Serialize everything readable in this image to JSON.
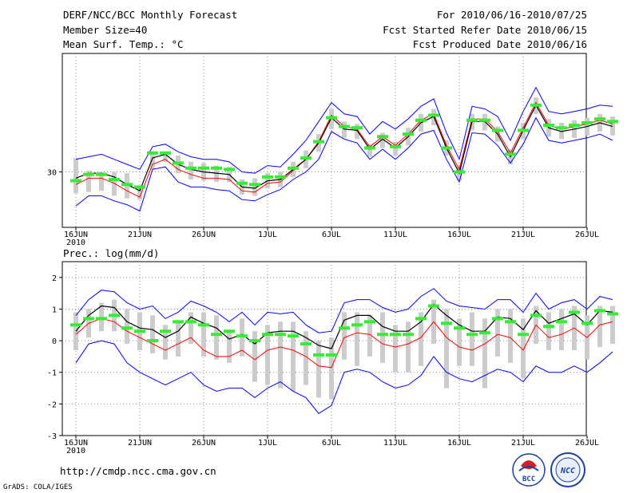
{
  "header": {
    "title": "DERF/NCC/BCC Monthly Forecast",
    "member_size": "Member Size=40",
    "variable": "Mean Surf. Temp.: °C",
    "period": "For 2010/06/16-2010/07/25",
    "started": "Fcst Started Refer Date 2010/06/15",
    "produced": "Fcst Produced Date 2010/06/16"
  },
  "footer": {
    "url": "http://cmdp.ncc.cma.gov.cn",
    "grads": "GrADS: COLA/IGES",
    "logo_bcc": "BCC",
    "logo_ncc": "NCC"
  },
  "colors": {
    "ens_mean": "#000000",
    "obs_mean": "#ff0000",
    "envelope": "#0000ff",
    "member_bar": "#cccccc",
    "highlight": "#33ee33",
    "grid": "#888888"
  },
  "chart_data": [
    {
      "type": "line",
      "title": "Mean Surf. Temp.: °C",
      "x_ticks": [
        "16JUN",
        "21JUN",
        "26JUN",
        "1JUL",
        "6JUL",
        "11JUL",
        "16JUL",
        "21JUL",
        "26JUL"
      ],
      "x_year": "2010",
      "y_ticks": [
        "30"
      ],
      "ylim": [
        25.6,
        39.4
      ],
      "series": [
        {
          "name": "ensemble_mean",
          "values": [
            29.5,
            29.9,
            29.9,
            29.6,
            29.0,
            28.5,
            31.1,
            31.4,
            30.6,
            30.2,
            30.0,
            29.9,
            29.8,
            28.8,
            28.7,
            29.3,
            29.4,
            30.2,
            31.0,
            32.3,
            34.3,
            33.4,
            33.3,
            31.8,
            32.6,
            31.9,
            32.8,
            33.9,
            34.4,
            31.9,
            29.9,
            34.0,
            34.0,
            33.0,
            31.2,
            33.3,
            35.3,
            33.5,
            33.2,
            33.4,
            33.6,
            33.9,
            33.6
          ]
        },
        {
          "name": "red_line",
          "values": [
            29.0,
            29.5,
            29.5,
            29.1,
            28.5,
            28.0,
            30.6,
            31.0,
            30.2,
            29.8,
            29.5,
            29.5,
            29.4,
            28.5,
            28.4,
            29.1,
            29.2,
            30.1,
            31.0,
            32.4,
            34.5,
            33.6,
            33.4,
            32.0,
            32.8,
            32.1,
            33.0,
            34.1,
            34.6,
            32.1,
            30.2,
            34.2,
            34.2,
            33.2,
            31.5,
            33.5,
            35.5,
            33.7,
            33.4,
            33.6,
            33.8,
            34.1,
            33.8
          ]
        },
        {
          "name": "upper_bound",
          "values": [
            31.0,
            31.2,
            31.4,
            31.0,
            30.6,
            30.2,
            32.0,
            32.2,
            31.6,
            31.2,
            31.0,
            31.0,
            30.8,
            30.0,
            29.9,
            30.5,
            30.4,
            31.4,
            32.5,
            34.0,
            35.5,
            34.6,
            34.4,
            33.0,
            34.0,
            33.4,
            34.2,
            35.2,
            35.8,
            33.1,
            31.0,
            35.2,
            35.0,
            34.4,
            32.5,
            34.8,
            36.7,
            34.8,
            34.6,
            34.8,
            35.0,
            35.3,
            35.2
          ]
        },
        {
          "name": "lower_bound",
          "values": [
            27.3,
            28.1,
            28.1,
            27.7,
            27.4,
            26.9,
            30.2,
            30.4,
            29.2,
            28.8,
            28.8,
            28.6,
            28.5,
            27.8,
            27.7,
            28.2,
            28.6,
            29.4,
            30.0,
            31.0,
            33.2,
            32.6,
            32.3,
            31.0,
            31.8,
            31.0,
            31.9,
            33.0,
            33.3,
            31.0,
            29.2,
            33.1,
            33.0,
            32.1,
            30.7,
            32.2,
            34.3,
            32.5,
            32.3,
            32.5,
            32.7,
            33.0,
            32.5
          ]
        },
        {
          "name": "member_bar_high",
          "values": [
            31.1,
            30.1,
            30.0,
            30.0,
            29.9,
            28.9,
            31.6,
            31.6,
            31.3,
            30.8,
            30.7,
            30.5,
            30.4,
            29.4,
            29.5,
            29.9,
            30.0,
            30.8,
            31.7,
            33.0,
            35.0,
            34.0,
            33.8,
            32.2,
            33.1,
            32.4,
            33.5,
            34.6,
            35.0,
            32.5,
            30.5,
            34.6,
            34.6,
            33.6,
            31.8,
            33.9,
            35.9,
            34.2,
            33.9,
            34.1,
            34.3,
            34.6,
            34.4
          ]
        },
        {
          "name": "member_bar_low",
          "values": [
            28.3,
            28.4,
            28.5,
            28.1,
            27.9,
            27.8,
            30.2,
            30.8,
            29.9,
            29.4,
            29.3,
            29.2,
            29.2,
            28.2,
            28.1,
            28.7,
            28.8,
            29.6,
            30.3,
            31.6,
            33.4,
            32.7,
            32.6,
            31.2,
            31.9,
            31.3,
            32.1,
            33.2,
            33.7,
            31.3,
            29.3,
            33.3,
            33.3,
            32.4,
            30.6,
            32.6,
            34.6,
            32.8,
            32.6,
            32.7,
            32.9,
            33.2,
            32.9
          ]
        },
        {
          "name": "highlight_marker",
          "values": [
            29.3,
            29.8,
            29.8,
            29.4,
            29.0,
            28.8,
            31.5,
            31.5,
            30.7,
            30.3,
            30.3,
            30.3,
            30.2,
            29.1,
            29.0,
            29.6,
            29.6,
            30.3,
            31.1,
            32.4,
            34.3,
            33.6,
            33.5,
            31.9,
            32.8,
            32.0,
            33.0,
            34.1,
            34.5,
            31.9,
            30.0,
            34.1,
            34.1,
            33.3,
            31.4,
            33.3,
            35.3,
            33.7,
            33.5,
            33.7,
            33.9,
            34.2,
            34.0
          ]
        }
      ]
    },
    {
      "type": "line",
      "title": "Prec.: log(mm/d)",
      "x_ticks": [
        "16JUN",
        "21JUN",
        "26JUN",
        "1JUL",
        "6JUL",
        "11JUL",
        "16JUL",
        "21JUL",
        "26JUL"
      ],
      "x_year": "2010",
      "y_ticks": [
        "2",
        "1",
        "0",
        "-1",
        "-2",
        "-3"
      ],
      "ylim": [
        -3,
        2.5
      ],
      "series": [
        {
          "name": "ensemble_mean",
          "values": [
            0.3,
            0.8,
            1.1,
            1.05,
            0.6,
            0.4,
            0.35,
            0.1,
            0.3,
            0.75,
            0.55,
            0.4,
            0.05,
            0.2,
            -0.1,
            0.25,
            0.3,
            0.3,
            0.1,
            -0.15,
            -0.25,
            0.65,
            0.8,
            0.8,
            0.45,
            0.3,
            0.3,
            0.6,
            1.15,
            0.8,
            0.5,
            0.3,
            0.3,
            0.75,
            0.7,
            0.35,
            0.95,
            0.55,
            0.7,
            0.85,
            0.5,
            0.95,
            0.9
          ]
        },
        {
          "name": "red_line",
          "values": [
            0.2,
            0.55,
            0.7,
            0.6,
            0.3,
            0.1,
            -0.1,
            -0.3,
            -0.1,
            0.1,
            -0.3,
            -0.5,
            -0.5,
            -0.3,
            -0.6,
            -0.3,
            -0.2,
            -0.3,
            -0.5,
            -0.8,
            -0.85,
            0.1,
            0.25,
            0.2,
            -0.1,
            -0.2,
            -0.1,
            0.1,
            0.6,
            0.1,
            -0.2,
            -0.3,
            -0.1,
            0.2,
            0.1,
            -0.3,
            0.5,
            0.1,
            0.2,
            0.4,
            0.1,
            0.5,
            0.6
          ]
        },
        {
          "name": "upper_bound",
          "values": [
            0.8,
            1.3,
            1.6,
            1.55,
            1.2,
            1.0,
            1.1,
            0.7,
            0.9,
            1.25,
            1.1,
            0.9,
            0.6,
            0.9,
            0.5,
            0.9,
            0.85,
            0.9,
            0.5,
            0.25,
            0.3,
            1.2,
            1.3,
            1.3,
            1.05,
            0.9,
            1.0,
            1.4,
            1.65,
            1.25,
            1.1,
            1.05,
            1.0,
            1.3,
            1.3,
            0.9,
            1.5,
            1.0,
            1.2,
            1.3,
            1.0,
            1.4,
            1.3
          ]
        },
        {
          "name": "lower_bound",
          "values": [
            -0.7,
            -0.1,
            0.0,
            -0.1,
            -0.7,
            -1.0,
            -1.2,
            -1.4,
            -1.2,
            -1.0,
            -1.4,
            -1.6,
            -1.5,
            -1.5,
            -1.8,
            -1.5,
            -1.3,
            -1.6,
            -1.8,
            -2.3,
            -2.05,
            -1.0,
            -0.9,
            -1.0,
            -1.3,
            -1.5,
            -1.4,
            -1.1,
            -0.5,
            -1.0,
            -1.2,
            -1.3,
            -1.1,
            -0.9,
            -1.0,
            -1.3,
            -0.8,
            -1.0,
            -1.0,
            -0.8,
            -1.0,
            -0.7,
            -0.35
          ]
        },
        {
          "name": "member_bar_high",
          "values": [
            0.9,
            1.0,
            1.2,
            1.3,
            1.0,
            0.9,
            0.8,
            0.5,
            0.6,
            0.9,
            0.9,
            0.8,
            0.3,
            0.7,
            0.3,
            0.5,
            0.6,
            0.6,
            0.3,
            0.0,
            0.1,
            0.9,
            0.9,
            0.8,
            0.9,
            0.5,
            0.6,
            0.9,
            1.3,
            1.0,
            0.7,
            0.9,
            0.7,
            1.0,
            1.0,
            0.7,
            1.1,
            0.9,
            1.0,
            1.1,
            0.8,
            1.1,
            1.1
          ]
        },
        {
          "name": "member_bar_low",
          "values": [
            -0.3,
            0.1,
            0.3,
            0.3,
            -0.1,
            -0.3,
            -0.4,
            -0.6,
            -0.5,
            -0.1,
            -0.5,
            -0.6,
            -0.7,
            -0.5,
            -1.3,
            -1.4,
            -1.5,
            -1.6,
            -1.4,
            -1.8,
            -1.85,
            -0.6,
            -0.8,
            -0.5,
            -0.7,
            -1.0,
            -1.0,
            -0.8,
            -0.1,
            -1.5,
            -0.8,
            -0.8,
            -1.5,
            -0.5,
            -0.7,
            -1.2,
            -0.1,
            -0.3,
            -0.3,
            -0.3,
            -0.6,
            -0.2,
            -0.1
          ]
        },
        {
          "name": "highlight_marker",
          "values": [
            0.5,
            0.7,
            0.7,
            0.8,
            0.4,
            0.3,
            0.0,
            0.3,
            0.6,
            0.6,
            0.5,
            0.2,
            0.3,
            0.15,
            0.0,
            0.2,
            0.2,
            0.15,
            -0.1,
            -0.45,
            -0.45,
            0.4,
            0.5,
            0.6,
            0.2,
            0.2,
            0.2,
            0.7,
            1.1,
            0.55,
            0.4,
            0.2,
            0.25,
            0.7,
            0.6,
            0.2,
            0.8,
            0.45,
            0.6,
            0.9,
            0.55,
            0.95,
            0.85
          ]
        }
      ]
    }
  ]
}
